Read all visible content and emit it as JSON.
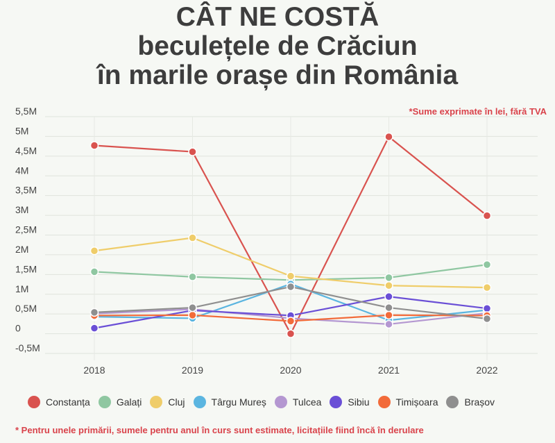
{
  "title_lines": [
    "CÂT NE COSTĂ",
    "beculețele de Crăciun",
    "în marile orașe din România"
  ],
  "note_top": "*Sume exprimate în lei, fără TVA",
  "note_bottom": "* Pentru unele primării, sumele pentru anul în curs sunt estimate, licitațiile fiind încă în derulare",
  "chart_data": {
    "type": "line",
    "title": "CÂT NE COSTĂ beculețele de Crăciun în marile orașe din România",
    "categories": [
      "2018",
      "2019",
      "2020",
      "2021",
      "2022"
    ],
    "ylim": [
      -0.5,
      5.5
    ],
    "yticks": [
      {
        "value": 5.5,
        "label": "5,5M"
      },
      {
        "value": 5.0,
        "label": "5M"
      },
      {
        "value": 4.5,
        "label": "4,5M"
      },
      {
        "value": 4.0,
        "label": "4M"
      },
      {
        "value": 3.5,
        "label": "3,5M"
      },
      {
        "value": 3.0,
        "label": "3M"
      },
      {
        "value": 2.5,
        "label": "2,5M"
      },
      {
        "value": 2.0,
        "label": "2M"
      },
      {
        "value": 1.5,
        "label": "1,5M"
      },
      {
        "value": 1.0,
        "label": "1M"
      },
      {
        "value": 0.5,
        "label": "0,5M"
      },
      {
        "value": 0.0,
        "label": "0"
      },
      {
        "value": -0.5,
        "label": "-0,5M"
      }
    ],
    "grid": true,
    "legend_position": "bottom",
    "series": [
      {
        "name": "Constanța",
        "color": "#d9534f",
        "values": [
          4.77,
          4.61,
          0.0,
          4.99,
          2.99
        ]
      },
      {
        "name": "Galați",
        "color": "#8fc7a1",
        "values": [
          1.57,
          1.44,
          1.36,
          1.42,
          1.75
        ]
      },
      {
        "name": "Cluj",
        "color": "#efcd6a",
        "values": [
          2.1,
          2.43,
          1.46,
          1.22,
          1.17
        ]
      },
      {
        "name": "Târgu Mureș",
        "color": "#5bb5e0",
        "values": [
          0.43,
          0.39,
          1.26,
          0.34,
          0.6
        ]
      },
      {
        "name": "Tulcea",
        "color": "#b497d1",
        "values": [
          0.51,
          0.62,
          0.39,
          0.24,
          0.52
        ]
      },
      {
        "name": "Sibiu",
        "color": "#6a4fd6",
        "values": [
          0.14,
          0.59,
          0.46,
          0.94,
          0.64
        ]
      },
      {
        "name": "Timișoara",
        "color": "#f26b3a",
        "values": [
          0.46,
          0.47,
          0.32,
          0.47,
          0.46
        ]
      },
      {
        "name": "Brașov",
        "color": "#8f8f8f",
        "values": [
          0.54,
          0.66,
          1.19,
          0.66,
          0.38
        ]
      }
    ]
  }
}
